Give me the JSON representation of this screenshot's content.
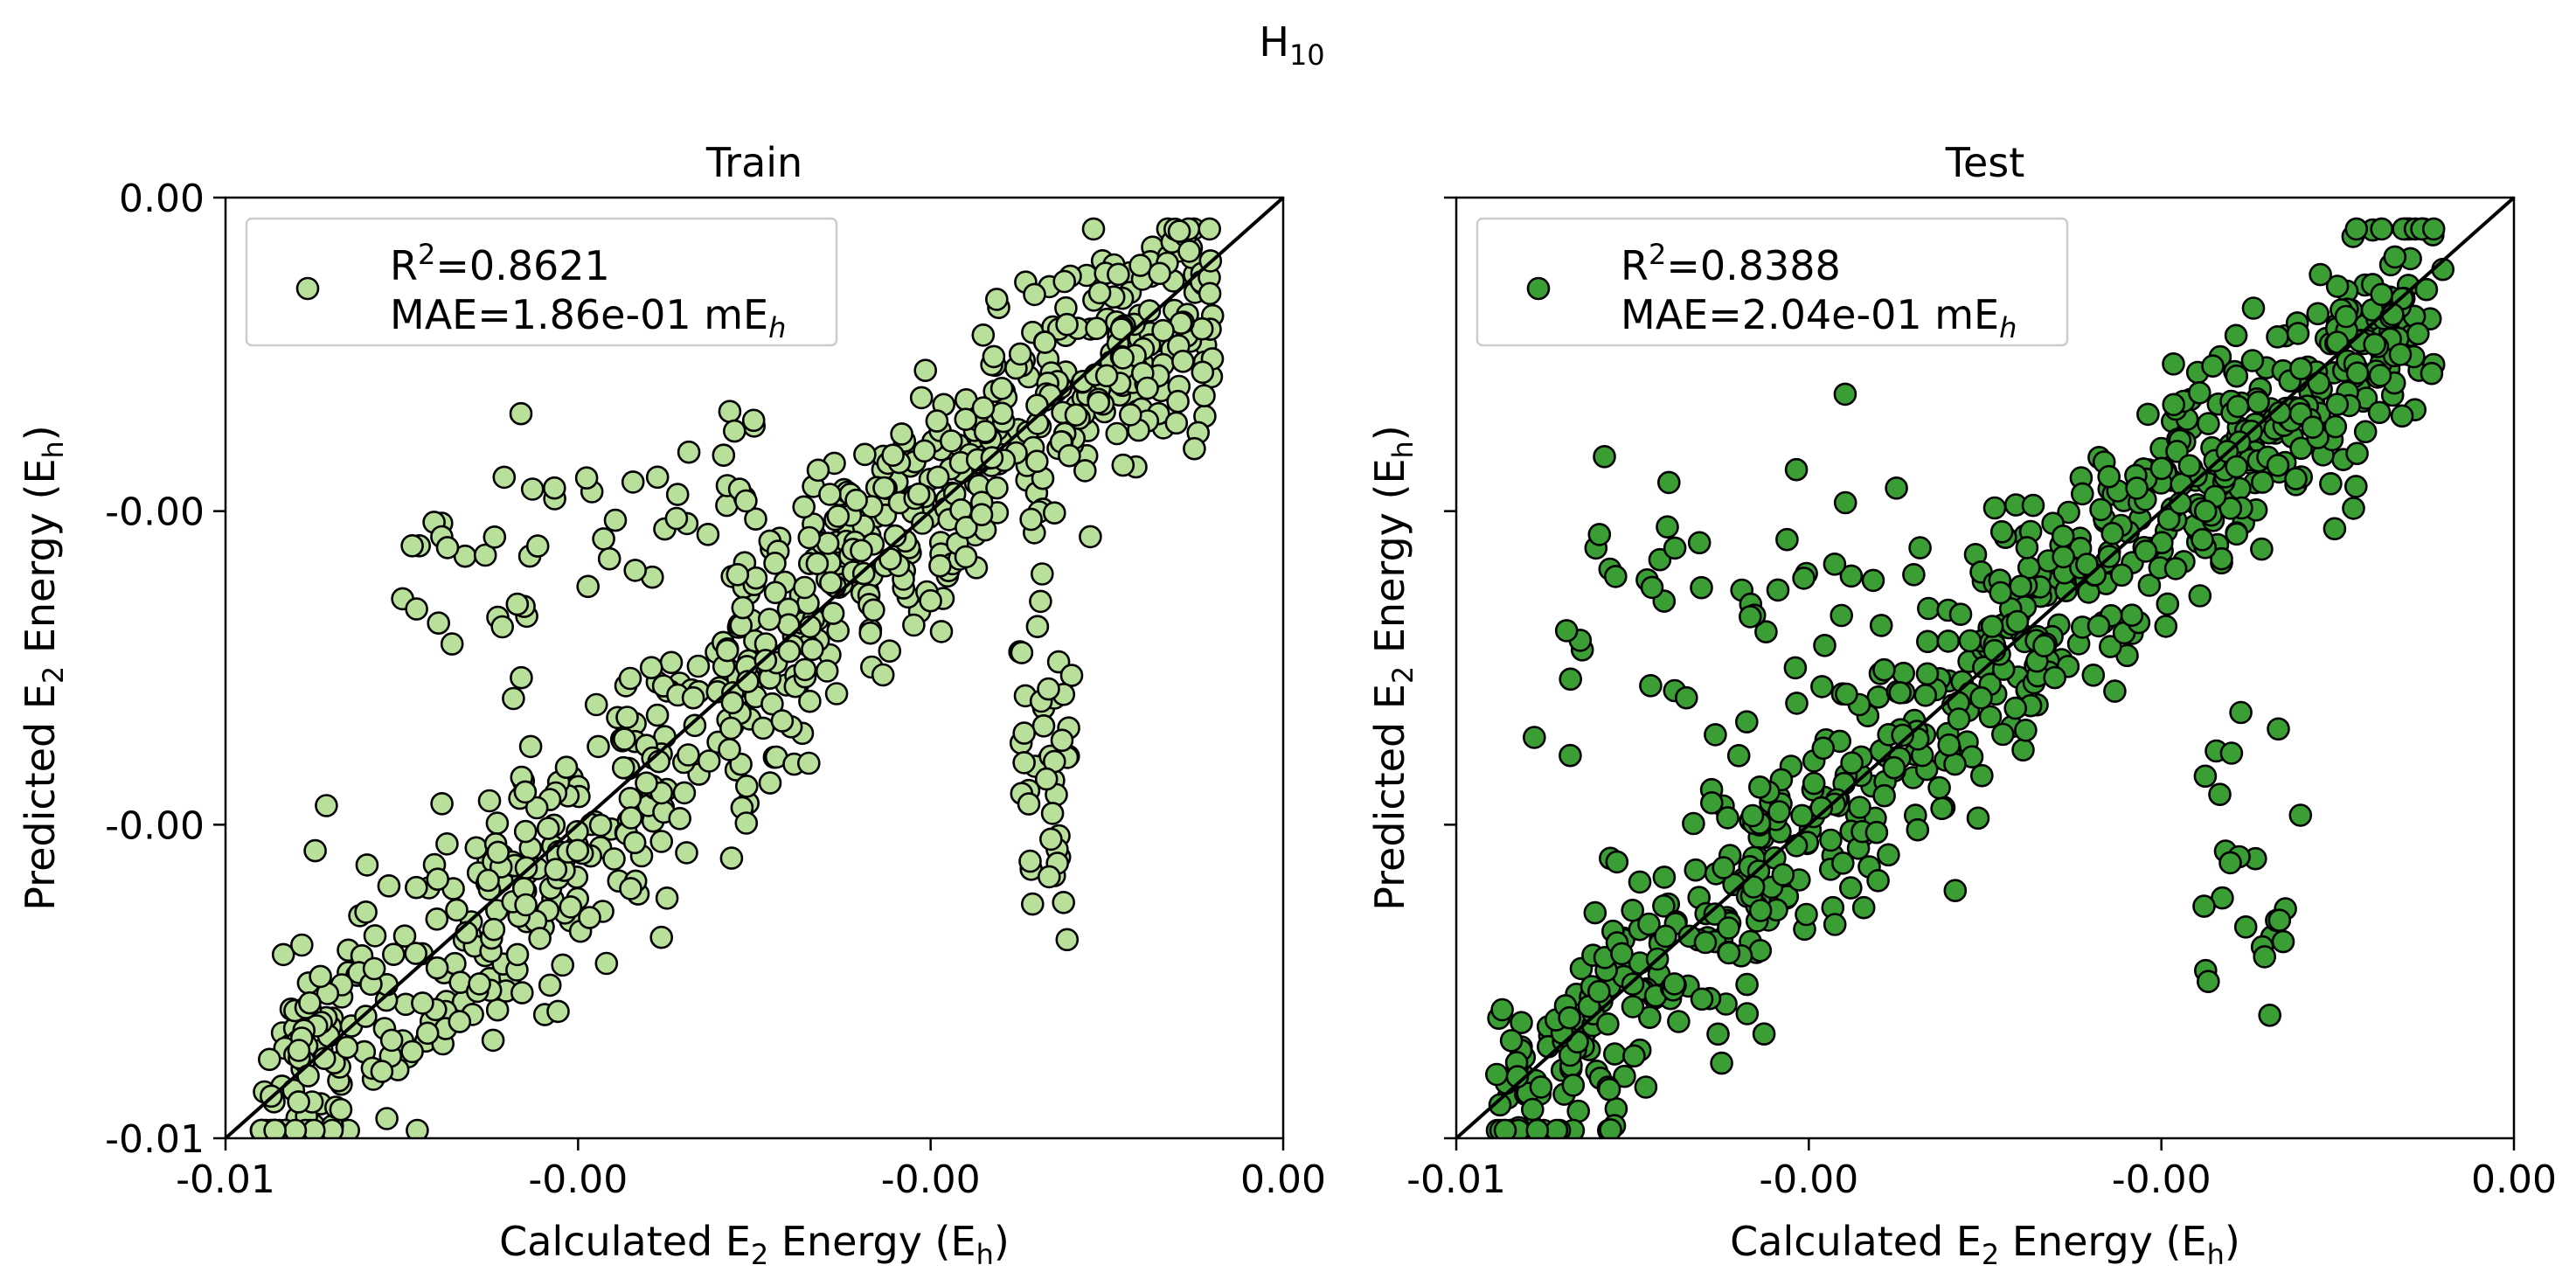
{
  "figure": {
    "suptitle_base": "H",
    "suptitle_sub": "10"
  },
  "chart_data": [
    {
      "type": "scatter",
      "title": "Train",
      "xlabel": {
        "pre": "Calculated E",
        "sub": "2",
        "mid": " Energy (E",
        "sub2": "h",
        "post": ")"
      },
      "ylabel": {
        "pre": "Predicted E",
        "sub": "2",
        "mid": " Energy (E",
        "sub2": "h",
        "post": ")"
      },
      "xlim": [
        -0.006,
        0.0
      ],
      "ylim": [
        -0.006,
        0.0
      ],
      "xtick_values": [
        -0.006,
        -0.004,
        -0.002,
        0.0
      ],
      "xtick_labels": [
        "-0.01",
        "-0.00",
        "-0.00",
        "0.00"
      ],
      "ytick_values": [
        -0.006,
        -0.004,
        -0.002,
        0.0
      ],
      "ytick_labels": [
        "-0.01",
        "-0.00",
        "-0.00",
        "0.00"
      ],
      "show_ytick_labels": true,
      "point_color": "#b8e09a",
      "legend": {
        "r2_label": "R",
        "r2_sup": "2",
        "r2_value": "=0.8621",
        "mae_label": "MAE=1.86e-01 mE",
        "mae_sub": "h",
        "placement": "upper-left"
      },
      "point_count": 900,
      "seed": 11,
      "groups": [
        {
          "name": "main-band",
          "share": 0.74,
          "x_range": [
            -0.0058,
            -0.0004
          ],
          "slope": 1.0,
          "offset": -5e-05,
          "spread": 0.00045
        },
        {
          "name": "lower-right-spike",
          "share": 0.05,
          "x_range": [
            -0.0015,
            -0.0012
          ],
          "slope": 0.0,
          "offset": -0.0036,
          "spread": 0.0005
        },
        {
          "name": "upper-left-outliers",
          "share": 0.06,
          "x_range": [
            -0.005,
            -0.003
          ],
          "slope": 0.25,
          "offset": -0.0012,
          "spread": 0.0004
        },
        {
          "name": "upper-band",
          "share": 0.15,
          "x_range": [
            -0.0032,
            -0.0004
          ],
          "slope": 0.7,
          "offset": -0.0004,
          "spread": 0.0003
        }
      ]
    },
    {
      "type": "scatter",
      "title": "Test",
      "xlabel": {
        "pre": "Calculated E",
        "sub": "2",
        "mid": " Energy (E",
        "sub2": "h",
        "post": ")"
      },
      "ylabel": {
        "pre": "Predicted E",
        "sub": "2",
        "mid": " Energy (E",
        "sub2": "h",
        "post": ")"
      },
      "xlim": [
        -0.006,
        0.0
      ],
      "ylim": [
        -0.006,
        0.0
      ],
      "xtick_values": [
        -0.006,
        -0.004,
        -0.002,
        0.0
      ],
      "xtick_labels": [
        "-0.01",
        "-0.00",
        "-0.00",
        "0.00"
      ],
      "ytick_values": [
        -0.006,
        -0.004,
        -0.002,
        0.0
      ],
      "ytick_labels": [
        "-0.01",
        "-0.00",
        "-0.00",
        "0.00"
      ],
      "show_ytick_labels": false,
      "point_color": "#3a9e35",
      "legend": {
        "r2_label": "R",
        "r2_sup": "2",
        "r2_value": "=0.8388",
        "mae_label": "MAE=2.04e-01 mE",
        "mae_sub": "h",
        "placement": "upper-left"
      },
      "point_count": 800,
      "seed": 29,
      "groups": [
        {
          "name": "main-band",
          "share": 0.78,
          "x_range": [
            -0.0058,
            -0.0004
          ],
          "slope": 1.0,
          "offset": -5e-05,
          "spread": 0.0004
        },
        {
          "name": "lower-right-spike",
          "share": 0.03,
          "x_range": [
            -0.0018,
            -0.0012
          ],
          "slope": 0.0,
          "offset": -0.0042,
          "spread": 0.0006
        },
        {
          "name": "upper-left-outliers",
          "share": 0.06,
          "x_range": [
            -0.0056,
            -0.0034
          ],
          "slope": 0.3,
          "offset": -0.0012,
          "spread": 0.0005
        },
        {
          "name": "upper-band",
          "share": 0.13,
          "x_range": [
            -0.003,
            -0.0004
          ],
          "slope": 0.75,
          "offset": -0.00035,
          "spread": 0.00028
        }
      ]
    }
  ]
}
